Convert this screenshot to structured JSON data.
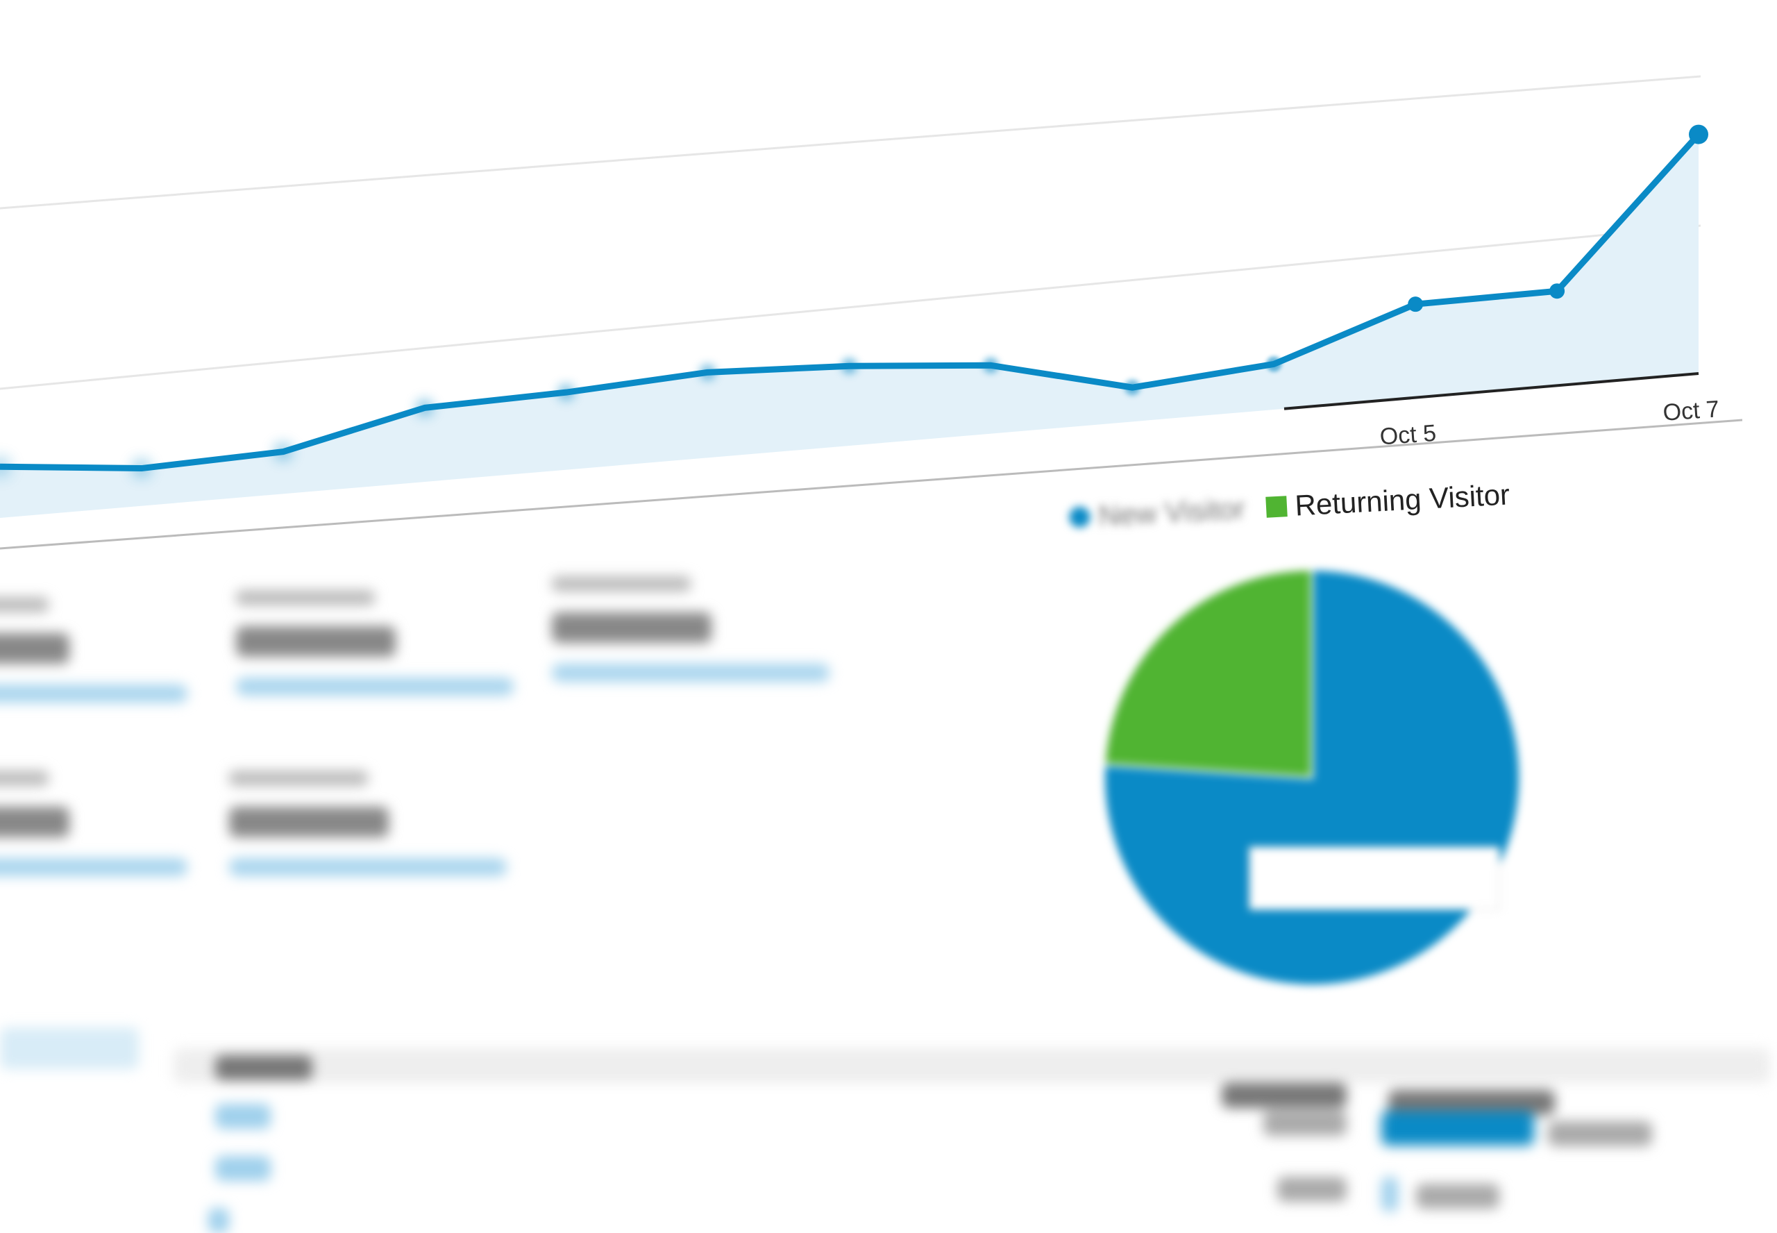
{
  "chart_data": [
    {
      "type": "area",
      "x_labels": [
        "",
        "",
        "",
        "",
        "",
        "",
        "",
        "",
        "",
        "",
        "Oct 5",
        "",
        "Oct 7"
      ],
      "values": [
        45,
        33,
        37,
        65,
        68,
        75,
        70,
        60,
        30,
        40,
        82,
        83,
        210
      ],
      "grid": true,
      "color": "#0a8ac6",
      "fill": "#e3f1f9"
    },
    {
      "type": "pie",
      "legend": [
        "New Visitor",
        "Returning Visitor"
      ],
      "values": [
        76,
        24
      ],
      "colors": [
        "#0a8ac6",
        "#50b432"
      ],
      "legend_placement": "top"
    }
  ]
}
